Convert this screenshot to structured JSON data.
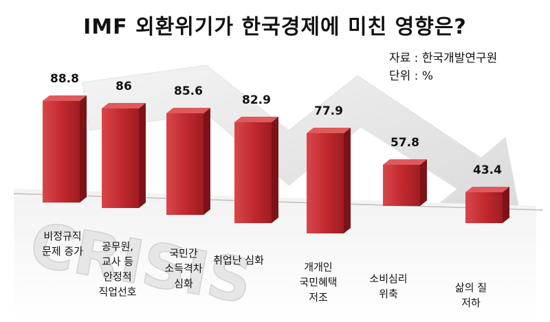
{
  "title": "IMF 외환위기가 한국경제에 미친 영향은?",
  "source_line": "자료 : 한국개발연구원",
  "unit_line": "단위 : %",
  "background_word": "CRISIS",
  "chart_data": {
    "type": "bar",
    "title": "IMF 외환위기가 한국경제에 미친 영향은?",
    "categories": [
      [
        "비정규직",
        "문제 증가"
      ],
      [
        "공무원,",
        "교사 등",
        "안정적",
        "직업선호"
      ],
      [
        "국민간",
        "소득격차",
        "심화"
      ],
      [
        "취업난 심화"
      ],
      [
        "개개인",
        "국민혜택",
        "저조"
      ],
      [
        "소비심리",
        "위축"
      ],
      [
        "삶의 질",
        "저하"
      ]
    ],
    "values": [
      88.8,
      86,
      85.6,
      82.9,
      77.9,
      57.8,
      43.4
    ],
    "value_labels": [
      "88.8",
      "86",
      "85.6",
      "82.9",
      "77.9",
      "57.8",
      "43.4"
    ],
    "unit": "%",
    "bar_color": "#c0282d",
    "grid": false,
    "legend": "none"
  }
}
